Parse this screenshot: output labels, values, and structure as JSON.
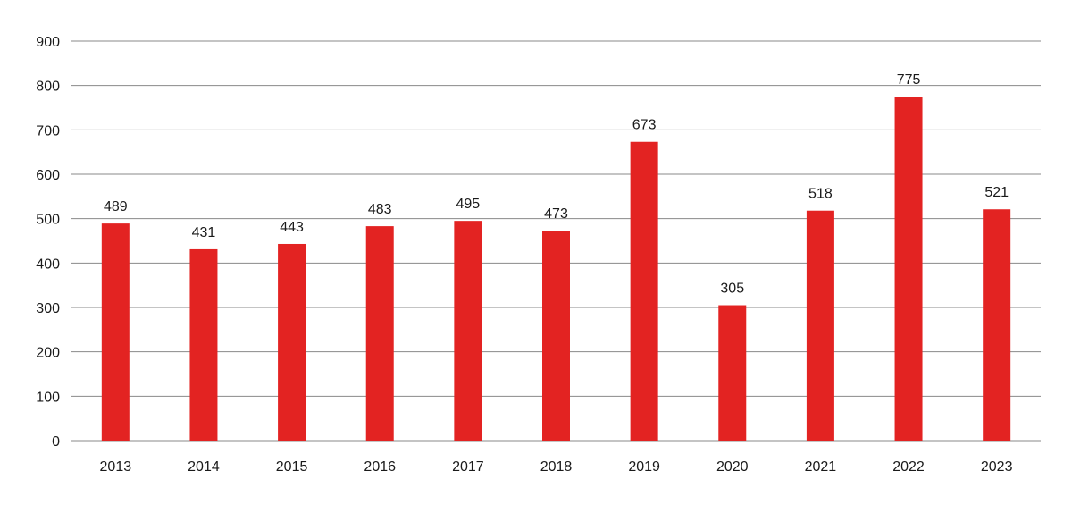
{
  "chart_data": {
    "type": "bar",
    "title": "",
    "xlabel": "",
    "ylabel": "",
    "categories": [
      "2013",
      "2014",
      "2015",
      "2016",
      "2017",
      "2018",
      "2019",
      "2020",
      "2021",
      "2022",
      "2023"
    ],
    "values": [
      489,
      431,
      443,
      483,
      495,
      473,
      673,
      305,
      518,
      775,
      521
    ],
    "ylim": [
      0,
      900
    ],
    "yticks": [
      0,
      100,
      200,
      300,
      400,
      500,
      600,
      700,
      800,
      900
    ],
    "grid": true,
    "legend": "none",
    "bar_color": "#e32322",
    "grid_color": "#8a8a8a"
  }
}
